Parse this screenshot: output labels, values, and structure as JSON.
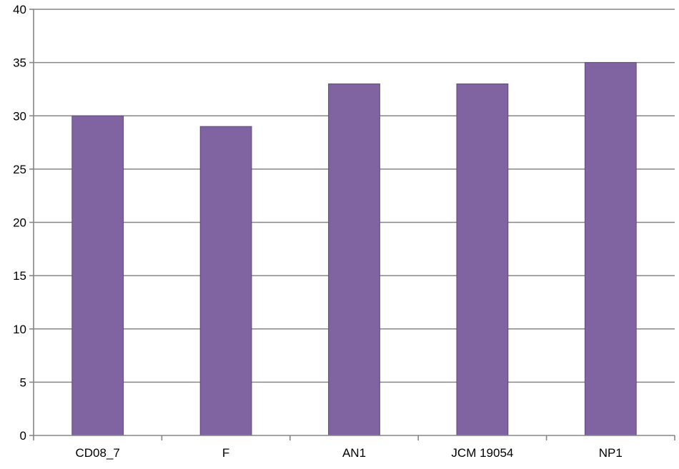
{
  "chart_data": {
    "type": "bar",
    "title": "",
    "xlabel": "",
    "ylabel": "",
    "categories": [
      "CD08_7",
      "F",
      "AN1",
      "JCM 19054",
      "NP1"
    ],
    "values": [
      30,
      29,
      33,
      33,
      35
    ],
    "ylim": [
      0,
      40
    ],
    "yticks": [
      "0",
      "5",
      "10",
      "15",
      "20",
      "25",
      "30",
      "35",
      "40"
    ],
    "grid": true,
    "legend": "none",
    "colors": {
      "bar_fill": "#8064A2",
      "bar_stroke": "#5F497A",
      "grid": "#868686",
      "axis": "#868686"
    }
  }
}
